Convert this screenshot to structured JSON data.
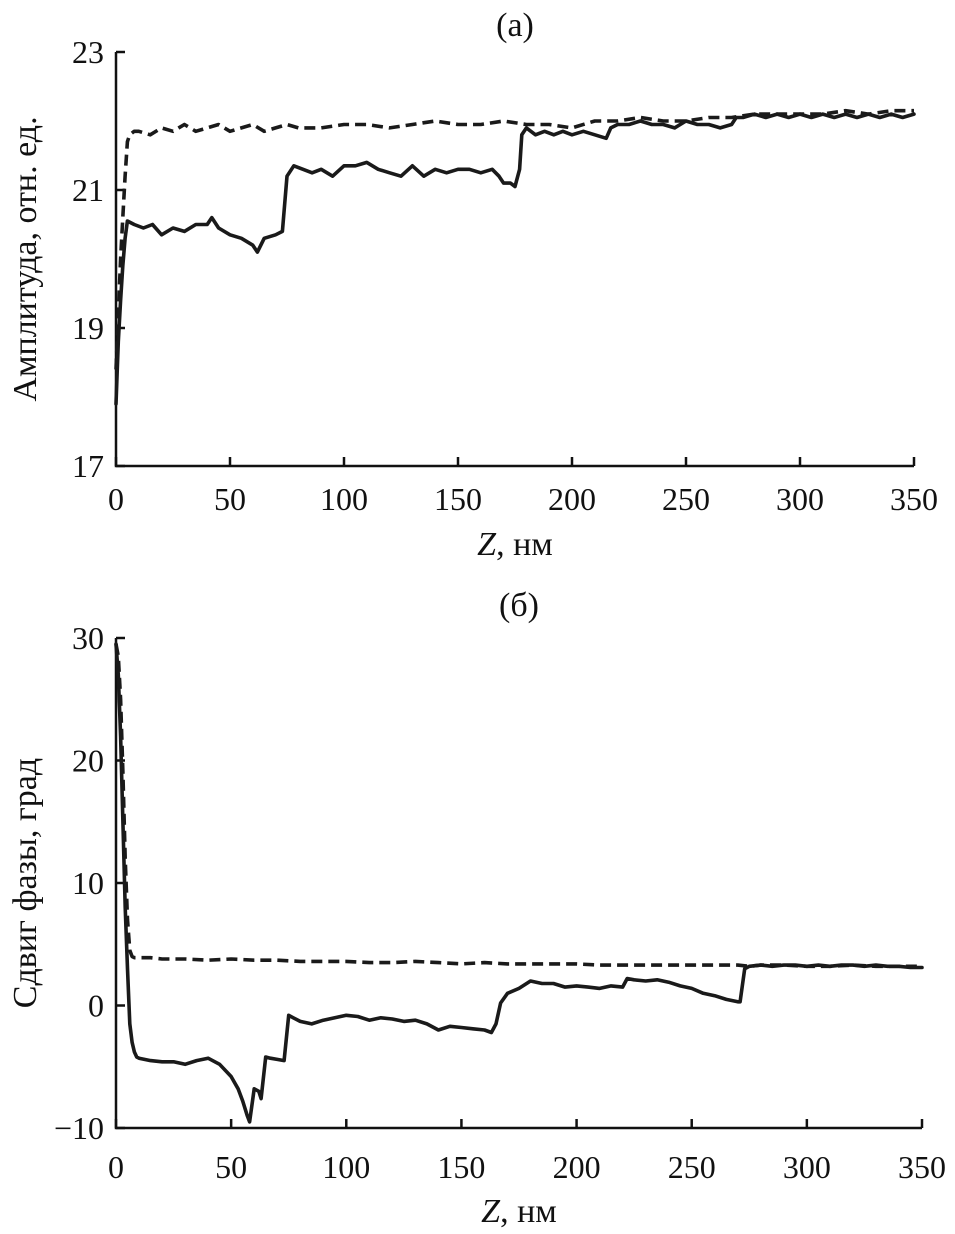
{
  "chart_data": [
    {
      "type": "line",
      "title": "(a)",
      "xlabel": "Z, нм",
      "xlabel_italic": "Z",
      "xlabel_rest": ", нм",
      "ylabel": "Амплитуда, отн. ед.",
      "xlim": [
        0,
        350
      ],
      "ylim": [
        17,
        23
      ],
      "xticks": [
        0,
        50,
        100,
        150,
        200,
        250,
        300,
        350
      ],
      "yticks": [
        17,
        19,
        21,
        23
      ],
      "grid": false,
      "series": [
        {
          "style": "solid",
          "x": [
            0,
            1,
            2,
            3,
            4,
            5,
            8,
            12,
            16,
            20,
            25,
            30,
            35,
            40,
            42,
            45,
            50,
            55,
            60,
            62,
            65,
            70,
            73,
            75,
            78,
            82,
            86,
            90,
            95,
            100,
            105,
            110,
            115,
            120,
            125,
            130,
            135,
            140,
            145,
            150,
            155,
            160,
            165,
            168,
            170,
            173,
            175,
            177,
            178,
            180,
            184,
            188,
            192,
            196,
            200,
            205,
            210,
            215,
            217,
            220,
            225,
            230,
            235,
            240,
            245,
            250,
            255,
            260,
            265,
            270,
            272,
            275,
            280,
            285,
            290,
            295,
            300,
            305,
            310,
            315,
            320,
            325,
            330,
            335,
            340,
            345,
            350
          ],
          "y": [
            17.9,
            18.8,
            19.4,
            19.9,
            20.3,
            20.55,
            20.5,
            20.45,
            20.5,
            20.35,
            20.45,
            20.4,
            20.5,
            20.5,
            20.6,
            20.45,
            20.35,
            20.3,
            20.2,
            20.1,
            20.3,
            20.35,
            20.4,
            21.2,
            21.35,
            21.3,
            21.25,
            21.3,
            21.2,
            21.35,
            21.35,
            21.4,
            21.3,
            21.25,
            21.2,
            21.35,
            21.2,
            21.3,
            21.25,
            21.3,
            21.3,
            21.25,
            21.3,
            21.2,
            21.1,
            21.1,
            21.05,
            21.3,
            21.8,
            21.9,
            21.8,
            21.85,
            21.8,
            21.85,
            21.8,
            21.85,
            21.8,
            21.75,
            21.9,
            21.95,
            21.95,
            22.0,
            21.95,
            21.95,
            21.9,
            22.0,
            21.95,
            21.95,
            21.9,
            21.95,
            22.05,
            22.05,
            22.1,
            22.05,
            22.1,
            22.05,
            22.1,
            22.05,
            22.1,
            22.05,
            22.1,
            22.05,
            22.1,
            22.05,
            22.1,
            22.05,
            22.1
          ]
        },
        {
          "style": "dashed",
          "x": [
            0,
            1,
            2,
            3,
            4,
            5,
            6,
            8,
            10,
            15,
            20,
            25,
            30,
            35,
            40,
            45,
            50,
            55,
            60,
            65,
            70,
            75,
            80,
            90,
            100,
            110,
            120,
            130,
            140,
            150,
            160,
            170,
            180,
            190,
            200,
            210,
            220,
            230,
            240,
            250,
            260,
            270,
            280,
            290,
            300,
            310,
            320,
            330,
            340,
            350
          ],
          "y": [
            18.4,
            19.2,
            20.0,
            20.6,
            21.2,
            21.7,
            21.8,
            21.85,
            21.85,
            21.8,
            21.9,
            21.85,
            21.95,
            21.85,
            21.9,
            21.95,
            21.85,
            21.9,
            21.95,
            21.85,
            21.9,
            21.95,
            21.9,
            21.9,
            21.95,
            21.95,
            21.9,
            21.95,
            22.0,
            21.95,
            21.95,
            22.0,
            21.95,
            21.95,
            21.9,
            22.0,
            22.0,
            22.05,
            22.0,
            22.0,
            22.05,
            22.05,
            22.1,
            22.1,
            22.1,
            22.1,
            22.15,
            22.1,
            22.15,
            22.15
          ]
        }
      ]
    },
    {
      "type": "line",
      "title": "(б)",
      "xlabel": "Z, нм",
      "xlabel_italic": "Z",
      "xlabel_rest": ", нм",
      "ylabel": "Сдвиг фазы, град",
      "xlim": [
        0,
        350
      ],
      "ylim": [
        -10,
        30
      ],
      "xticks": [
        0,
        50,
        100,
        150,
        200,
        250,
        300,
        350
      ],
      "yticks": [
        -10,
        0,
        10,
        20,
        30
      ],
      "ytick_labels": [
        "−10",
        "0",
        "10",
        "20",
        "30"
      ],
      "grid": false,
      "series": [
        {
          "style": "solid",
          "x": [
            0,
            1,
            2,
            3,
            4,
            5,
            6,
            7,
            8,
            9,
            10,
            15,
            20,
            25,
            30,
            35,
            40,
            45,
            50,
            53,
            55,
            57,
            58,
            60,
            62,
            63,
            65,
            67,
            70,
            73,
            75,
            77,
            80,
            85,
            90,
            95,
            100,
            105,
            110,
            115,
            120,
            125,
            130,
            135,
            140,
            145,
            150,
            155,
            160,
            163,
            165,
            167,
            170,
            175,
            180,
            185,
            190,
            195,
            200,
            205,
            210,
            215,
            220,
            222,
            225,
            230,
            235,
            240,
            245,
            250,
            255,
            260,
            265,
            270,
            271,
            273,
            275,
            280,
            285,
            290,
            295,
            300,
            305,
            310,
            315,
            320,
            325,
            330,
            335,
            340,
            345,
            350
          ],
          "y": [
            29.5,
            27.0,
            22.0,
            15.0,
            8.0,
            3.0,
            -1.5,
            -3.0,
            -3.8,
            -4.2,
            -4.3,
            -4.5,
            -4.6,
            -4.6,
            -4.8,
            -4.5,
            -4.3,
            -4.8,
            -5.8,
            -6.8,
            -7.8,
            -9.0,
            -9.5,
            -6.8,
            -7.0,
            -7.6,
            -4.2,
            -4.3,
            -4.4,
            -4.5,
            -0.8,
            -1.0,
            -1.3,
            -1.5,
            -1.2,
            -1.0,
            -0.8,
            -0.9,
            -1.2,
            -1.0,
            -1.1,
            -1.3,
            -1.2,
            -1.5,
            -2.0,
            -1.7,
            -1.8,
            -1.9,
            -2.0,
            -2.2,
            -1.5,
            0.2,
            1.0,
            1.4,
            2.0,
            1.8,
            1.8,
            1.5,
            1.6,
            1.5,
            1.4,
            1.6,
            1.5,
            2.2,
            2.1,
            2.0,
            2.1,
            1.9,
            1.6,
            1.4,
            1.0,
            0.8,
            0.5,
            0.3,
            0.3,
            3.0,
            3.2,
            3.3,
            3.2,
            3.3,
            3.3,
            3.2,
            3.3,
            3.2,
            3.3,
            3.3,
            3.2,
            3.3,
            3.2,
            3.2,
            3.1,
            3.1
          ]
        },
        {
          "style": "dashed",
          "x": [
            0,
            1,
            2,
            3,
            4,
            5,
            6,
            7,
            8,
            10,
            15,
            20,
            30,
            40,
            50,
            60,
            70,
            80,
            90,
            100,
            110,
            120,
            130,
            140,
            150,
            160,
            170,
            180,
            190,
            200,
            210,
            220,
            230,
            240,
            250,
            260,
            270,
            275,
            280,
            290,
            300,
            310,
            320,
            330,
            340,
            350
          ],
          "y": [
            29.5,
            28.5,
            25.0,
            19.0,
            12.0,
            7.0,
            4.5,
            4.0,
            3.9,
            3.9,
            3.9,
            3.8,
            3.8,
            3.7,
            3.8,
            3.7,
            3.7,
            3.6,
            3.6,
            3.6,
            3.5,
            3.5,
            3.6,
            3.5,
            3.4,
            3.5,
            3.4,
            3.4,
            3.4,
            3.4,
            3.3,
            3.3,
            3.3,
            3.3,
            3.3,
            3.3,
            3.3,
            3.2,
            3.3,
            3.3,
            3.2,
            3.2,
            3.3,
            3.2,
            3.2,
            3.2
          ]
        }
      ]
    }
  ]
}
